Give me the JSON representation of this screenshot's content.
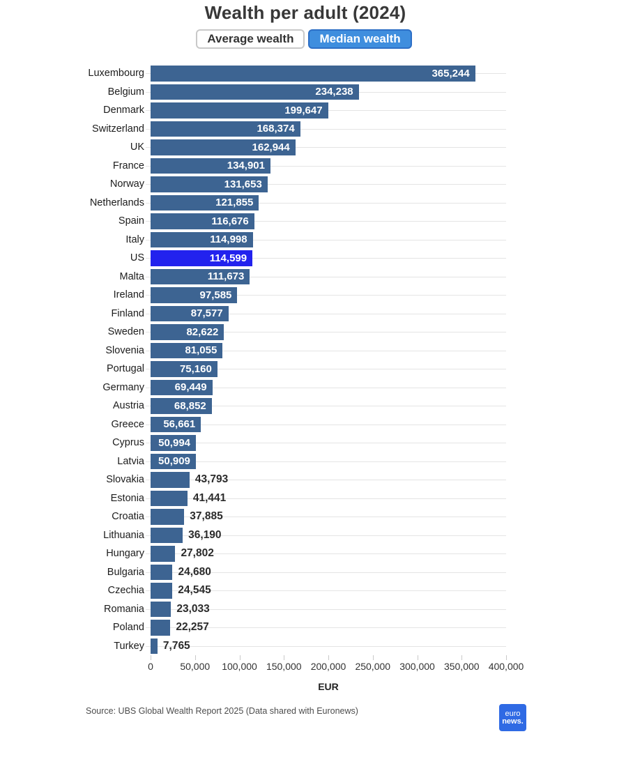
{
  "title": "Wealth per adult (2024)",
  "toggle": {
    "average_label": "Average wealth",
    "median_label": "Median wealth"
  },
  "chart_data": {
    "type": "bar",
    "orientation": "horizontal",
    "title": "Wealth per adult (2024)",
    "xlabel": "EUR",
    "xlim": [
      0,
      400000
    ],
    "x_ticks": [
      0,
      50000,
      100000,
      150000,
      200000,
      250000,
      300000,
      350000,
      400000
    ],
    "grid": "horizontal-row-lines",
    "categories": [
      "Luxembourg",
      "Belgium",
      "Denmark",
      "Switzerland",
      "UK",
      "France",
      "Norway",
      "Netherlands",
      "Spain",
      "Italy",
      "US",
      "Malta",
      "Ireland",
      "Finland",
      "Sweden",
      "Slovenia",
      "Portugal",
      "Germany",
      "Austria",
      "Greece",
      "Cyprus",
      "Latvia",
      "Slovakia",
      "Estonia",
      "Croatia",
      "Lithuania",
      "Hungary",
      "Bulgaria",
      "Czechia",
      "Romania",
      "Poland",
      "Turkey"
    ],
    "values": [
      365244,
      234238,
      199647,
      168374,
      162944,
      134901,
      131653,
      121855,
      116676,
      114998,
      114599,
      111673,
      97585,
      87577,
      82622,
      81055,
      75160,
      69449,
      68852,
      56661,
      50994,
      50909,
      43793,
      41441,
      37885,
      36190,
      27802,
      24680,
      24545,
      23033,
      22257,
      7765
    ],
    "highlight_category": "US",
    "bar_color": "#3d6492",
    "highlight_color": "#2222ee",
    "selected_series": "Median wealth"
  },
  "footer": {
    "source": "Source: UBS Global Wealth Report 2025 (Data shared with Euronews)",
    "logo_line1": "euro",
    "logo_line2": "news."
  }
}
